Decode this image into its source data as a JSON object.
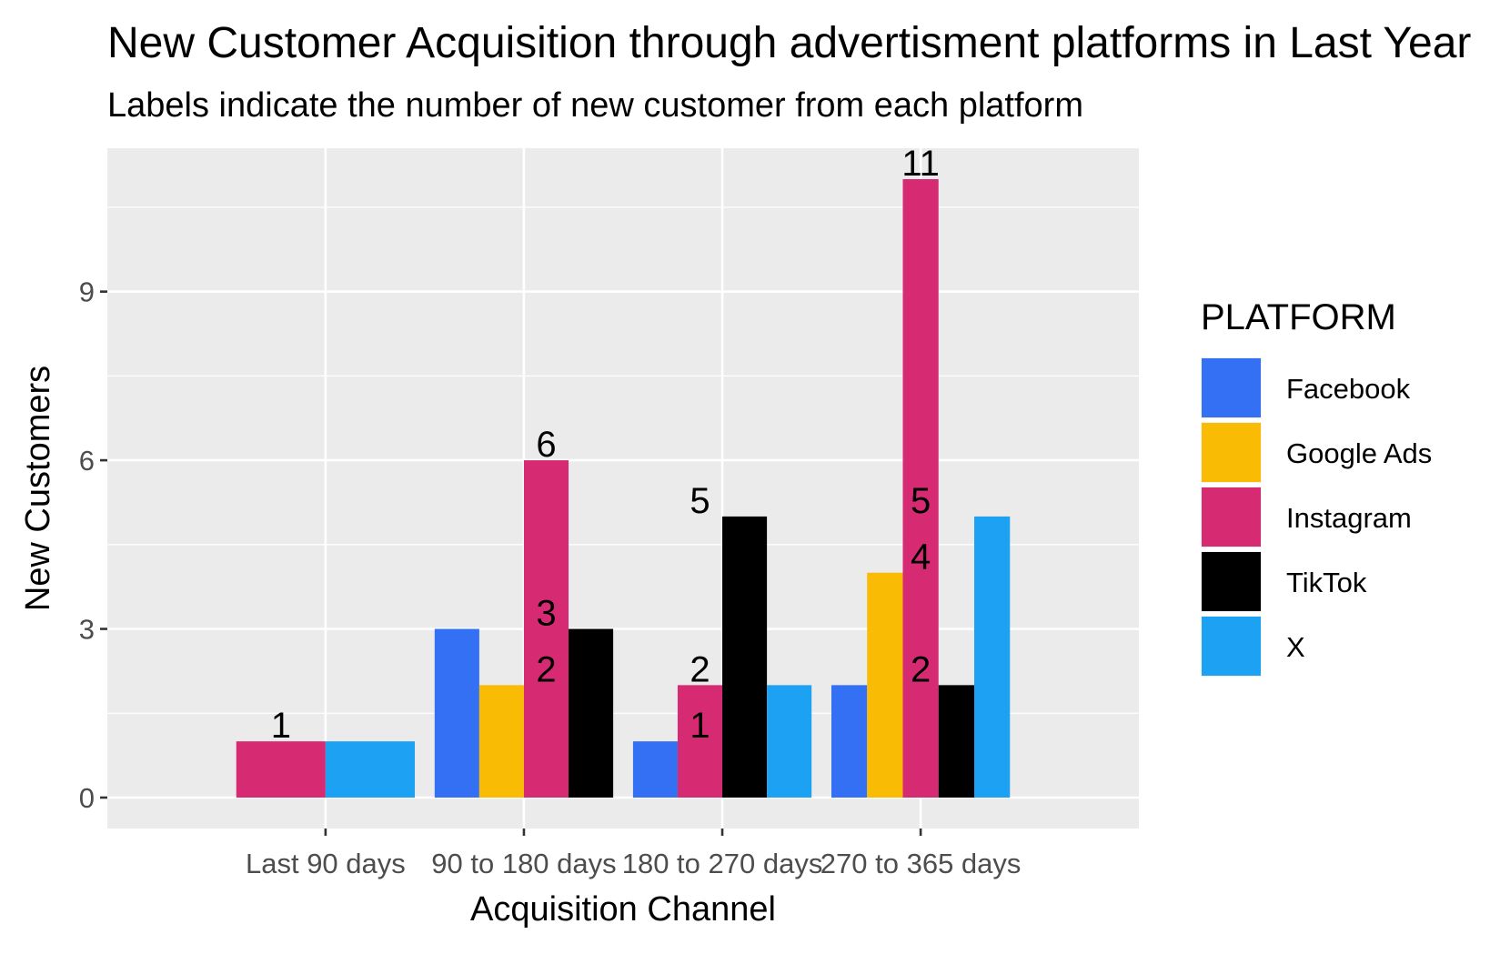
{
  "chart_data": {
    "type": "bar",
    "title": "New Customer Acquisition through advertisment platforms in Last Year",
    "subtitle": "Labels indicate the number of new customer from each platform",
    "xlabel": "Acquisition Channel",
    "ylabel": "New Customers",
    "categories": [
      "Last 90 days",
      "90 to 180 days",
      "180 to 270 days",
      "270 to 365 days"
    ],
    "ylim": [
      -0.55,
      11.55
    ],
    "yticks": [
      0,
      3,
      6,
      9
    ],
    "grid": true,
    "legend_title": "PLATFORM",
    "legend_position": "right",
    "series": [
      {
        "name": "Facebook",
        "color": "#3370F4",
        "values": [
          null,
          3,
          1,
          2
        ]
      },
      {
        "name": "Google Ads",
        "color": "#FABB05",
        "values": [
          null,
          2,
          null,
          4
        ]
      },
      {
        "name": "Instagram",
        "color": "#D62A73",
        "values": [
          1,
          6,
          2,
          11
        ]
      },
      {
        "name": "TikTok",
        "color": "#000000",
        "values": [
          null,
          3,
          5,
          2
        ]
      },
      {
        "name": "X",
        "color": "#1DA1F2",
        "values": [
          1,
          null,
          2,
          5
        ]
      }
    ],
    "label_series": "Instagram",
    "data_labels": [
      {
        "category": "Last 90 days",
        "value": 1
      },
      {
        "category": "90 to 180 days",
        "value": 3
      },
      {
        "category": "90 to 180 days",
        "value": 2
      },
      {
        "category": "90 to 180 days",
        "value": 6
      },
      {
        "category": "180 to 270 days",
        "value": 2
      },
      {
        "category": "180 to 270 days",
        "value": 1
      },
      {
        "category": "180 to 270 days",
        "value": 5
      },
      {
        "category": "270 to 365 days",
        "value": 5
      },
      {
        "category": "270 to 365 days",
        "value": 4
      },
      {
        "category": "270 to 365 days",
        "value": 2
      },
      {
        "category": "270 to 365 days",
        "value": 11
      }
    ]
  }
}
